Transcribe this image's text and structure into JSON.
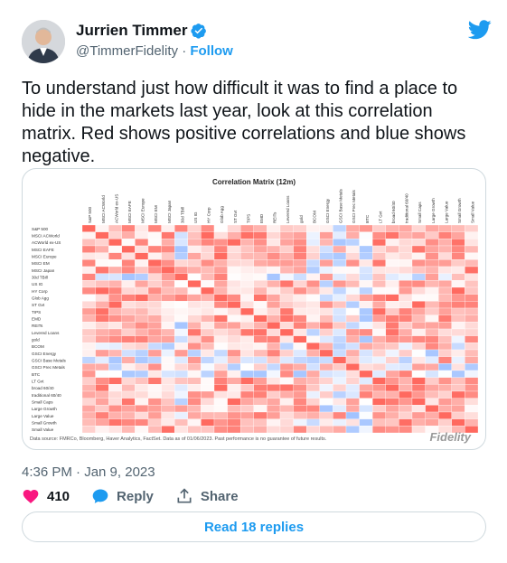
{
  "author": {
    "display_name": "Jurrien Timmer",
    "handle": "@TimmerFidelity",
    "separator": "·",
    "follow_label": "Follow"
  },
  "tweet": {
    "text": "To understand just how difficult it was to find a place to hide in the markets last year, look at this correlation matrix. Red shows positive correlations and blue shows negative.",
    "timestamp": "4:36 PM · Jan 9, 2023"
  },
  "image": {
    "title": "Correlation Matrix (12m)",
    "source": "Data source: FMRCo, Bloomberg, Haver Analytics, FactSet. Data as of 01/06/2023. Past performance is no guarantee of future results.",
    "logo": "Fidelity",
    "labels": [
      "S&P 500",
      "MSCI ACWorld",
      "ACWorld ex-US",
      "MSCI EAFE",
      "MSCI Europe",
      "MSCI EM",
      "MSCI Japan",
      "30d TBill",
      "US IG",
      "HY Corp",
      "Glob Agg",
      "ST Gvt",
      "TIPS",
      "EMD",
      "REITs",
      "Levered Loans",
      "gold",
      "BCOM",
      "GSCI Energy",
      "GSCI Base Metals",
      "GSCI Prec Metals",
      "BTC",
      "LT Gvt",
      "broad 60/40",
      "traditional 60/40",
      "Small Caps",
      "Large Growth",
      "Large Value",
      "Small Growth",
      "Small Value"
    ]
  },
  "actions": {
    "likes": "410",
    "reply_label": "Reply",
    "share_label": "Share",
    "read_replies_label": "Read 18 replies"
  },
  "colors": {
    "accent": "#1d9bf0",
    "positive": "#e05a4f",
    "negative": "#3a74c4",
    "like": "#f91880"
  }
}
